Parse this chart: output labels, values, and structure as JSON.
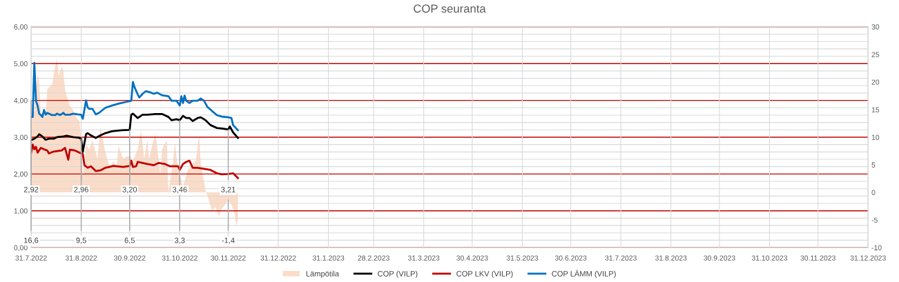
{
  "chart_data": {
    "type": "line",
    "title": "COP seuranta",
    "grid": true,
    "legend": "bottom",
    "xlim": [
      "2022-07-31",
      "2023-12-31"
    ],
    "xticks": [
      {
        "value": "2022-07-31",
        "label": "31.7.2022"
      },
      {
        "value": "2022-08-31",
        "label": "31.8.2022"
      },
      {
        "value": "2022-09-30",
        "label": "30.9.2022"
      },
      {
        "value": "2022-10-31",
        "label": "31.10.2022"
      },
      {
        "value": "2022-11-30",
        "label": "30.11.2022"
      },
      {
        "value": "2022-12-31",
        "label": "31.12.2022"
      },
      {
        "value": "2023-01-31",
        "label": "31.1.2023"
      },
      {
        "value": "2023-02-28",
        "label": "28.2.2023"
      },
      {
        "value": "2023-03-31",
        "label": "31.3.2023"
      },
      {
        "value": "2023-04-30",
        "label": "30.4.2023"
      },
      {
        "value": "2023-05-31",
        "label": "31.5.2023"
      },
      {
        "value": "2023-06-30",
        "label": "30.6.2023"
      },
      {
        "value": "2023-07-31",
        "label": "31.7.2023"
      },
      {
        "value": "2023-08-31",
        "label": "31.8.2023"
      },
      {
        "value": "2023-09-30",
        "label": "30.9.2023"
      },
      {
        "value": "2023-10-31",
        "label": "31.10.2023"
      },
      {
        "value": "2023-11-30",
        "label": "30.11.2023"
      },
      {
        "value": "2023-12-31",
        "label": "31.12.2023"
      }
    ],
    "ylim": [
      0,
      6
    ],
    "yticks": [
      {
        "value": 0,
        "label": "0,00"
      },
      {
        "value": 0.2,
        "label": null
      },
      {
        "value": 0.4,
        "label": null
      },
      {
        "value": 0.6,
        "label": null
      },
      {
        "value": 0.8,
        "label": null
      },
      {
        "value": 1,
        "label": "1,00"
      },
      {
        "value": 1.2,
        "label": null
      },
      {
        "value": 1.4,
        "label": null
      },
      {
        "value": 1.6,
        "label": null
      },
      {
        "value": 1.8,
        "label": null
      },
      {
        "value": 2,
        "label": "2,00"
      },
      {
        "value": 2.2,
        "label": null
      },
      {
        "value": 2.4,
        "label": null
      },
      {
        "value": 2.6,
        "label": null
      },
      {
        "value": 2.8,
        "label": null
      },
      {
        "value": 3,
        "label": "3,00"
      },
      {
        "value": 3.2,
        "label": null
      },
      {
        "value": 3.4,
        "label": null
      },
      {
        "value": 3.6,
        "label": null
      },
      {
        "value": 3.8,
        "label": null
      },
      {
        "value": 4,
        "label": "4,00"
      },
      {
        "value": 4.2,
        "label": null
      },
      {
        "value": 4.4,
        "label": null
      },
      {
        "value": 4.6,
        "label": null
      },
      {
        "value": 4.8,
        "label": null
      },
      {
        "value": 5,
        "label": "5,00"
      },
      {
        "value": 5.2,
        "label": null
      },
      {
        "value": 5.4,
        "label": null
      },
      {
        "value": 5.6,
        "label": null
      },
      {
        "value": 5.8,
        "label": null
      },
      {
        "value": 6,
        "label": "6,00"
      }
    ],
    "y2lim": [
      -10,
      30
    ],
    "y2ticks": [
      -10,
      -5,
      0,
      5,
      10,
      15,
      20,
      25,
      30
    ],
    "series": [
      {
        "name": "Lämpötila",
        "type": "area",
        "axis": "y2",
        "color": "#fbdcc8",
        "x": [
          "2022-07-31",
          "2022-08-02",
          "2022-08-04",
          "2022-08-05",
          "2022-08-06",
          "2022-08-09",
          "2022-08-10",
          "2022-08-11",
          "2022-08-13",
          "2022-08-14",
          "2022-08-16",
          "2022-08-17",
          "2022-08-19",
          "2022-08-20",
          "2022-08-21",
          "2022-08-24",
          "2022-08-26",
          "2022-08-28",
          "2022-08-30",
          "2022-08-31",
          "2022-09-01",
          "2022-09-03",
          "2022-09-05",
          "2022-09-07",
          "2022-09-10",
          "2022-09-12",
          "2022-09-14",
          "2022-09-16",
          "2022-09-18",
          "2022-09-20",
          "2022-09-22",
          "2022-09-23",
          "2022-09-26",
          "2022-09-28",
          "2022-09-30",
          "2022-10-02",
          "2022-10-05",
          "2022-10-07",
          "2022-10-09",
          "2022-10-11",
          "2022-10-12",
          "2022-10-14",
          "2022-10-16",
          "2022-10-19",
          "2022-10-20",
          "2022-10-23",
          "2022-10-24",
          "2022-10-27",
          "2022-10-28",
          "2022-10-30",
          "2022-10-31",
          "2022-11-02",
          "2022-11-05",
          "2022-11-08",
          "2022-11-10",
          "2022-11-12",
          "2022-11-13",
          "2022-11-16",
          "2022-11-18",
          "2022-11-20",
          "2022-11-22",
          "2022-11-24",
          "2022-11-26",
          "2022-11-29",
          "2022-11-30",
          "2022-12-02",
          "2022-12-04",
          "2022-12-05",
          "2022-12-06"
        ],
        "values": [
          16.6,
          14.5,
          21.5,
          20.3,
          14.5,
          13.6,
          18.6,
          19.0,
          19.5,
          21.5,
          24.3,
          21.1,
          22.8,
          21.9,
          18.6,
          15.7,
          14.9,
          13.6,
          12.8,
          9.5,
          3.0,
          8.6,
          7.8,
          9.5,
          6.1,
          11.9,
          8.6,
          6.1,
          4.5,
          5.7,
          4.5,
          8.4,
          6.1,
          6.5,
          6.5,
          5.7,
          7.8,
          11.3,
          6.1,
          9.5,
          6.1,
          8.6,
          10.7,
          3.2,
          7.8,
          9.5,
          -0.1,
          6.1,
          9.0,
          4.1,
          3.3,
          1.1,
          4.1,
          5.3,
          5.7,
          10.5,
          5.3,
          0.3,
          -1.4,
          -3.4,
          -2.6,
          -4.3,
          -3.0,
          -1.8,
          -1.4,
          -2.2,
          -3.9,
          -6.0,
          -5.0
        ],
        "value_labels": [
          "16,6",
          null,
          null,
          null,
          null,
          null,
          null,
          null,
          null,
          null,
          null,
          null,
          null,
          null,
          null,
          null,
          null,
          null,
          null,
          "9,5",
          null,
          null,
          null,
          null,
          null,
          null,
          null,
          null,
          null,
          null,
          null,
          null,
          null,
          null,
          "6,5",
          null,
          null,
          null,
          null,
          null,
          null,
          null,
          null,
          null,
          null,
          null,
          null,
          null,
          null,
          null,
          "3,3",
          null,
          null,
          null,
          null,
          null,
          null,
          null,
          null,
          null,
          null,
          null,
          null,
          null,
          "-1,4",
          null,
          null,
          null,
          null
        ]
      },
      {
        "name": "COP (VILP)",
        "color": "#000000",
        "x": [
          "2022-07-31",
          "2022-08-02",
          "2022-08-04",
          "2022-08-05",
          "2022-08-07",
          "2022-08-09",
          "2022-08-11",
          "2022-08-14",
          "2022-08-16",
          "2022-08-20",
          "2022-08-22",
          "2022-08-26",
          "2022-08-29",
          "2022-08-31",
          "2022-09-01",
          "2022-09-03",
          "2022-09-04",
          "2022-09-06",
          "2022-09-09",
          "2022-09-12",
          "2022-09-15",
          "2022-09-19",
          "2022-09-25",
          "2022-09-30",
          "2022-10-01",
          "2022-10-02",
          "2022-10-05",
          "2022-10-08",
          "2022-10-11",
          "2022-10-16",
          "2022-10-20",
          "2022-10-24",
          "2022-10-26",
          "2022-10-29",
          "2022-10-31",
          "2022-11-02",
          "2022-11-04",
          "2022-11-06",
          "2022-11-08",
          "2022-11-11",
          "2022-11-13",
          "2022-11-16",
          "2022-11-19",
          "2022-11-23",
          "2022-11-27",
          "2022-11-30",
          "2022-12-01",
          "2022-12-03",
          "2022-12-06"
        ],
        "values": [
          2.92,
          2.96,
          3.02,
          3.08,
          3.02,
          2.93,
          2.96,
          2.96,
          3.0,
          3.02,
          3.04,
          3.0,
          2.99,
          2.96,
          2.6,
          3.08,
          3.11,
          3.05,
          2.98,
          3.05,
          3.11,
          3.16,
          3.19,
          3.2,
          3.61,
          3.64,
          3.52,
          3.61,
          3.61,
          3.63,
          3.63,
          3.55,
          3.46,
          3.49,
          3.46,
          3.58,
          3.52,
          3.52,
          3.44,
          3.52,
          3.54,
          3.46,
          3.33,
          3.25,
          3.23,
          3.21,
          3.29,
          3.13,
          2.98
        ],
        "value_labels": [
          "2,92",
          null,
          null,
          null,
          null,
          null,
          null,
          null,
          null,
          null,
          null,
          null,
          null,
          "2,96",
          null,
          null,
          null,
          null,
          null,
          null,
          null,
          null,
          null,
          "3,20",
          null,
          null,
          null,
          null,
          null,
          null,
          null,
          null,
          null,
          null,
          "3,46",
          null,
          null,
          null,
          null,
          null,
          null,
          null,
          null,
          null,
          null,
          "3,21",
          null,
          null,
          null
        ]
      },
      {
        "name": "COP LKV (VILP)",
        "color": "#c00000",
        "x": [
          "2022-07-31",
          "2022-08-01",
          "2022-08-02",
          "2022-08-03",
          "2022-08-04",
          "2022-08-06",
          "2022-08-08",
          "2022-08-10",
          "2022-08-11",
          "2022-08-14",
          "2022-08-19",
          "2022-08-21",
          "2022-08-23",
          "2022-08-24",
          "2022-08-27",
          "2022-08-31",
          "2022-09-01",
          "2022-09-02",
          "2022-09-04",
          "2022-09-06",
          "2022-09-09",
          "2022-09-12",
          "2022-09-15",
          "2022-09-20",
          "2022-09-26",
          "2022-09-30",
          "2022-10-01",
          "2022-10-02",
          "2022-10-04",
          "2022-10-05",
          "2022-10-08",
          "2022-10-11",
          "2022-10-15",
          "2022-10-18",
          "2022-10-22",
          "2022-10-25",
          "2022-10-30",
          "2022-10-31",
          "2022-11-02",
          "2022-11-04",
          "2022-11-06",
          "2022-11-08",
          "2022-11-11",
          "2022-11-15",
          "2022-11-19",
          "2022-11-23",
          "2022-11-26",
          "2022-11-30",
          "2022-12-03",
          "2022-12-06"
        ],
        "values": [
          2.58,
          2.8,
          2.67,
          2.74,
          2.58,
          2.71,
          2.67,
          2.64,
          2.56,
          2.61,
          2.64,
          2.71,
          2.39,
          2.66,
          2.64,
          2.56,
          2.55,
          2.24,
          2.17,
          2.21,
          2.08,
          2.1,
          2.17,
          2.22,
          2.19,
          2.22,
          2.36,
          2.19,
          2.21,
          2.33,
          2.3,
          2.27,
          2.24,
          2.3,
          2.27,
          2.21,
          2.21,
          2.11,
          2.27,
          2.33,
          2.36,
          2.17,
          2.17,
          2.14,
          2.11,
          2.02,
          1.99,
          2.0,
          2.02,
          1.89
        ]
      },
      {
        "name": "COP LÄMM (VILP)",
        "color": "#0070c0",
        "x": [
          "2022-07-31",
          "2022-08-01",
          "2022-08-02",
          "2022-08-03",
          "2022-08-04",
          "2022-08-05",
          "2022-08-06",
          "2022-08-07",
          "2022-08-08",
          "2022-08-09",
          "2022-08-10",
          "2022-08-13",
          "2022-08-15",
          "2022-08-16",
          "2022-08-18",
          "2022-08-20",
          "2022-08-21",
          "2022-08-24",
          "2022-08-26",
          "2022-08-29",
          "2022-08-31",
          "2022-09-01",
          "2022-09-03",
          "2022-09-04",
          "2022-09-05",
          "2022-09-07",
          "2022-09-09",
          "2022-09-11",
          "2022-09-15",
          "2022-09-19",
          "2022-09-23",
          "2022-09-28",
          "2022-09-30",
          "2022-10-01",
          "2022-10-02",
          "2022-10-03",
          "2022-10-05",
          "2022-10-06",
          "2022-10-08",
          "2022-10-10",
          "2022-10-12",
          "2022-10-15",
          "2022-10-17",
          "2022-10-20",
          "2022-10-24",
          "2022-10-26",
          "2022-10-29",
          "2022-10-31",
          "2022-11-01",
          "2022-11-02",
          "2022-11-03",
          "2022-11-04",
          "2022-11-06",
          "2022-11-08",
          "2022-11-11",
          "2022-11-13",
          "2022-11-15",
          "2022-11-17",
          "2022-11-20",
          "2022-11-23",
          "2022-11-26",
          "2022-11-30",
          "2022-12-02",
          "2022-12-03",
          "2022-12-06"
        ],
        "values": [
          3.55,
          3.55,
          5.02,
          3.99,
          3.86,
          3.64,
          3.6,
          3.55,
          3.74,
          3.61,
          3.66,
          3.6,
          3.6,
          3.64,
          3.6,
          3.66,
          3.61,
          3.61,
          3.64,
          3.62,
          3.61,
          3.5,
          4.0,
          3.81,
          3.77,
          3.77,
          3.62,
          3.66,
          3.8,
          3.86,
          3.91,
          3.96,
          3.98,
          3.99,
          4.5,
          4.36,
          4.16,
          4.08,
          4.18,
          4.25,
          4.23,
          4.18,
          4.21,
          4.14,
          4.11,
          3.99,
          3.99,
          3.86,
          4.11,
          3.93,
          4.13,
          3.99,
          3.93,
          3.99,
          3.99,
          4.05,
          3.99,
          3.83,
          3.71,
          3.6,
          3.56,
          3.54,
          3.52,
          3.33,
          3.19
        ]
      }
    ]
  }
}
